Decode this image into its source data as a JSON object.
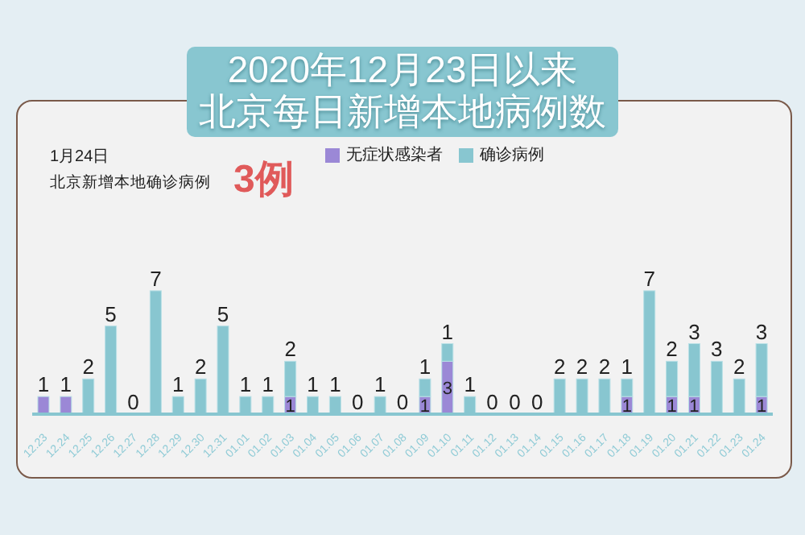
{
  "chart_data": {
    "type": "bar",
    "title": "2020年12月23日以来",
    "subtitle": "北京每日新增本地病例数",
    "annotations": [
      "1月24日",
      "北京新增本地确诊病例",
      "3例"
    ],
    "categories": [
      "12.23",
      "12.24",
      "12.25",
      "12.26",
      "12.27",
      "12.28",
      "12.29",
      "12.30",
      "12.31",
      "01.01",
      "01.02",
      "01.03",
      "01.04",
      "01.05",
      "01.06",
      "01.07",
      "01.08",
      "01.09",
      "01.10",
      "01.11",
      "01.12",
      "01.13",
      "01.14",
      "01.15",
      "01.16",
      "01.17",
      "01.18",
      "01.19",
      "01.20",
      "01.21",
      "01.22",
      "01.23",
      "01.24"
    ],
    "stacked": true,
    "legend": "top",
    "grid": false,
    "series": [
      {
        "name": "无症状感染者",
        "color": "#9b88d6",
        "values": [
          1,
          1,
          0,
          0,
          0,
          0,
          0,
          0,
          0,
          0,
          0,
          1,
          0,
          0,
          0,
          0,
          0,
          1,
          3,
          0,
          0,
          0,
          0,
          0,
          0,
          0,
          1,
          0,
          1,
          1,
          0,
          0,
          1
        ],
        "value_labels": [
          "1",
          "1",
          null,
          null,
          null,
          null,
          null,
          null,
          null,
          null,
          null,
          "1",
          null,
          null,
          null,
          null,
          null,
          "1",
          "3",
          null,
          null,
          null,
          null,
          null,
          null,
          null,
          "1",
          null,
          "1",
          "1",
          null,
          null,
          "1"
        ]
      },
      {
        "name": "确诊病例",
        "color": "#88c6d0",
        "values": [
          0,
          0,
          2,
          5,
          0,
          7,
          1,
          2,
          5,
          1,
          1,
          2,
          1,
          1,
          0,
          1,
          0,
          1,
          1,
          1,
          0,
          0,
          0,
          2,
          2,
          2,
          1,
          7,
          2,
          3,
          3,
          2,
          3
        ],
        "value_labels": [
          null,
          null,
          "2",
          "5",
          "0",
          "7",
          "1",
          "2",
          "5",
          "1",
          "1",
          "2",
          "1",
          "1",
          "0",
          "1",
          "0",
          "1",
          "1",
          "1",
          "0",
          "0",
          "0",
          "2",
          "2",
          "2",
          "1",
          "7",
          "2",
          "3",
          "3",
          "2",
          "3"
        ]
      }
    ]
  }
}
